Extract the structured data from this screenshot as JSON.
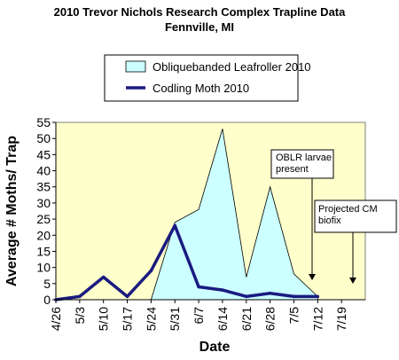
{
  "chart_data": {
    "type": "area",
    "title": "2010 Trevor Nichols Research Complex Trapline Data",
    "subtitle": "Fennville, MI",
    "xlabel": "Date",
    "ylabel": "Average # Moths/ Trap",
    "ylim": [
      0,
      55
    ],
    "yticks": [
      0,
      5,
      10,
      15,
      20,
      25,
      30,
      35,
      40,
      45,
      50,
      55
    ],
    "categories": [
      "4/26",
      "5/3",
      "5/10",
      "5/17",
      "5/24",
      "5/31",
      "6/7",
      "6/14",
      "6/21",
      "6/28",
      "7/5",
      "7/12",
      "7/19"
    ],
    "grid": false,
    "legend_position": "top",
    "series": [
      {
        "name": "Obliquebanded Leafroller 2010",
        "type": "area",
        "color": "#ccffff",
        "edge_color": "#000000",
        "points": [
          [
            4,
            0
          ],
          [
            5,
            24
          ],
          [
            6,
            28
          ],
          [
            7,
            53
          ],
          [
            8,
            7
          ],
          [
            9,
            35
          ],
          [
            10,
            8
          ],
          [
            11,
            1
          ]
        ]
      },
      {
        "name": "Codling Moth 2010",
        "type": "line",
        "color": "#1a1a80",
        "points": [
          [
            0,
            0
          ],
          [
            1,
            1
          ],
          [
            2,
            7
          ],
          [
            3,
            1
          ],
          [
            4,
            9
          ],
          [
            5,
            23
          ],
          [
            6,
            4
          ],
          [
            7,
            3
          ],
          [
            8,
            1
          ],
          [
            9,
            2
          ],
          [
            10,
            1
          ],
          [
            11,
            1
          ]
        ]
      }
    ],
    "annotations": [
      {
        "text": "OBLR larvae present",
        "x": 10,
        "y": 5
      },
      {
        "text": "Projected CM biofix",
        "x": 11.5,
        "y": 3
      }
    ]
  },
  "colors": {
    "plot_background": "#ffffcc",
    "cm_line": "#1a1a80",
    "oblr_fill": "#ccffff"
  }
}
